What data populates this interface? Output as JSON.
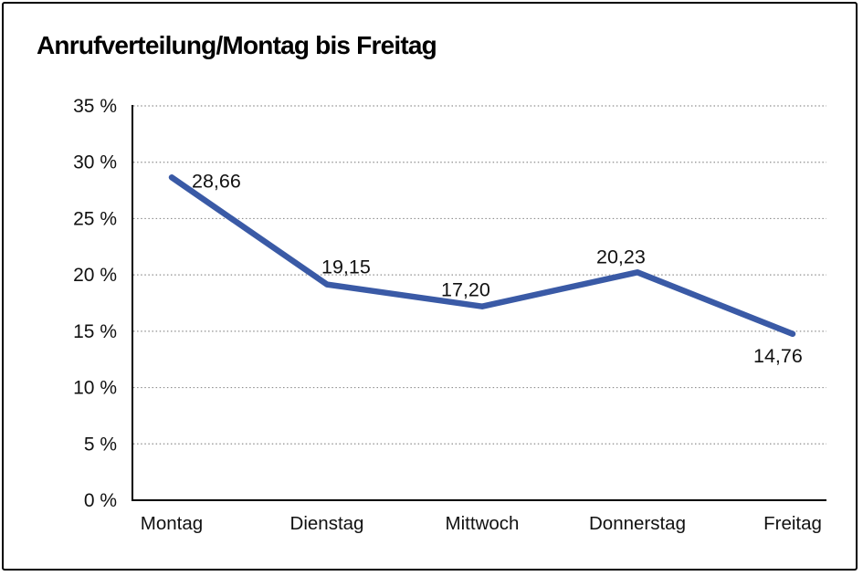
{
  "title": "Anrufverteilung/Montag bis Freitag",
  "colors": {
    "line": "#3A5AA6",
    "axis": "#000000",
    "gridline": "#8f8f8f",
    "text": "#111111",
    "frame_border": "#000000",
    "background": "#ffffff"
  },
  "chart_data": {
    "type": "line",
    "title": "Anrufverteilung/Montag bis Freitag",
    "categories": [
      "Montag",
      "Dienstag",
      "Mittwoch",
      "Donnerstag",
      "Freitag"
    ],
    "values": [
      28.66,
      19.15,
      17.2,
      20.23,
      14.76
    ],
    "value_labels": [
      "28,66",
      "19,15",
      "17,20",
      "20,23",
      "14,76"
    ],
    "series_name": "Anrufverteilung",
    "xlabel": "",
    "ylabel": "",
    "ylim": [
      0,
      35
    ],
    "ytick_step": 5,
    "ytick_labels": [
      "0 %",
      "5 %",
      "10 %",
      "15 %",
      "20 %",
      "25 %",
      "30 %",
      "35 %"
    ],
    "grid": "horizontal-dotted",
    "legend": "none",
    "line_color": "#3A5AA6",
    "point_label_color": "#111111"
  }
}
